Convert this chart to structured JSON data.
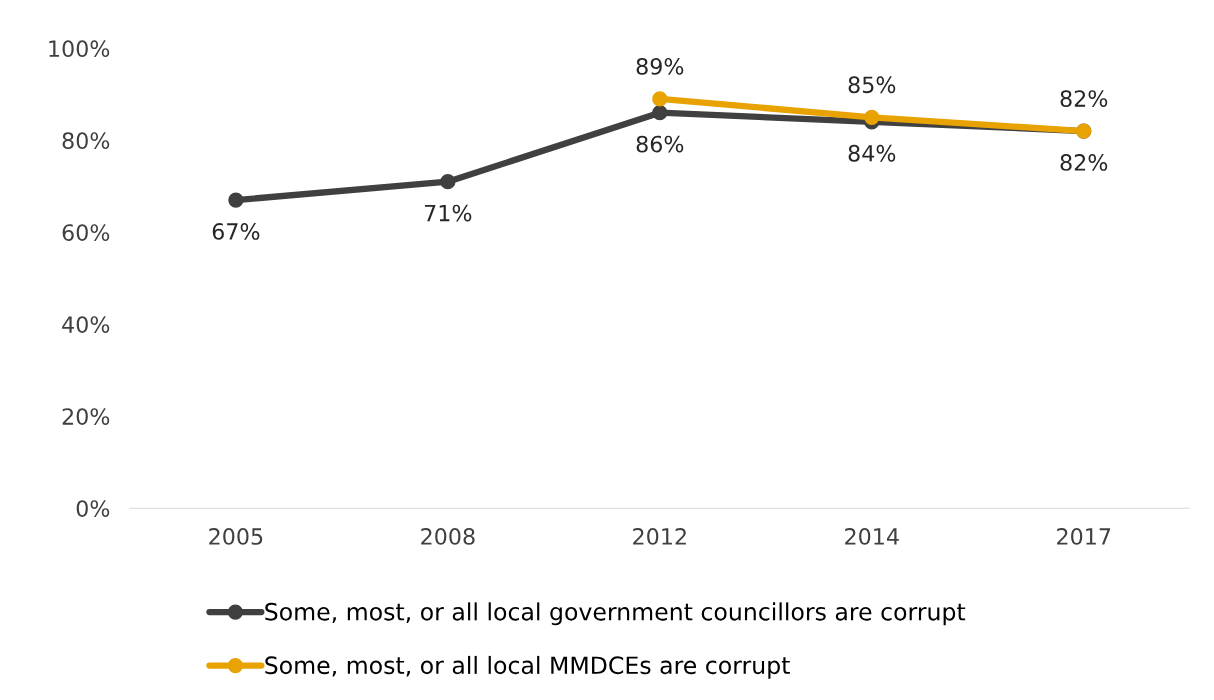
{
  "chart_data": {
    "type": "line",
    "categories": [
      "2005",
      "2008",
      "2012",
      "2014",
      "2017"
    ],
    "series": [
      {
        "name": "Some, most, or all local government councillors are corrupt",
        "color": "#404040",
        "values": [
          67,
          71,
          86,
          84,
          82
        ],
        "value_labels": [
          "67%",
          "71%",
          "86%",
          "84%",
          "82%"
        ]
      },
      {
        "name": "Some, most, or all local MMDCEs are corrupt",
        "color": "#e8a202",
        "values": [
          null,
          null,
          89,
          85,
          82
        ],
        "value_labels": [
          null,
          null,
          "89%",
          "85%",
          "82%"
        ]
      }
    ],
    "ylim": [
      0,
      100
    ],
    "yticks": [
      {
        "value": 0,
        "label": "0%"
      },
      {
        "value": 20,
        "label": "20%"
      },
      {
        "value": 40,
        "label": "40%"
      },
      {
        "value": 60,
        "label": "60%"
      },
      {
        "value": 80,
        "label": "80%"
      },
      {
        "value": 100,
        "label": "100%"
      }
    ],
    "grid": false,
    "legend": "bottom",
    "marker": "circle",
    "line_style": "solid"
  }
}
